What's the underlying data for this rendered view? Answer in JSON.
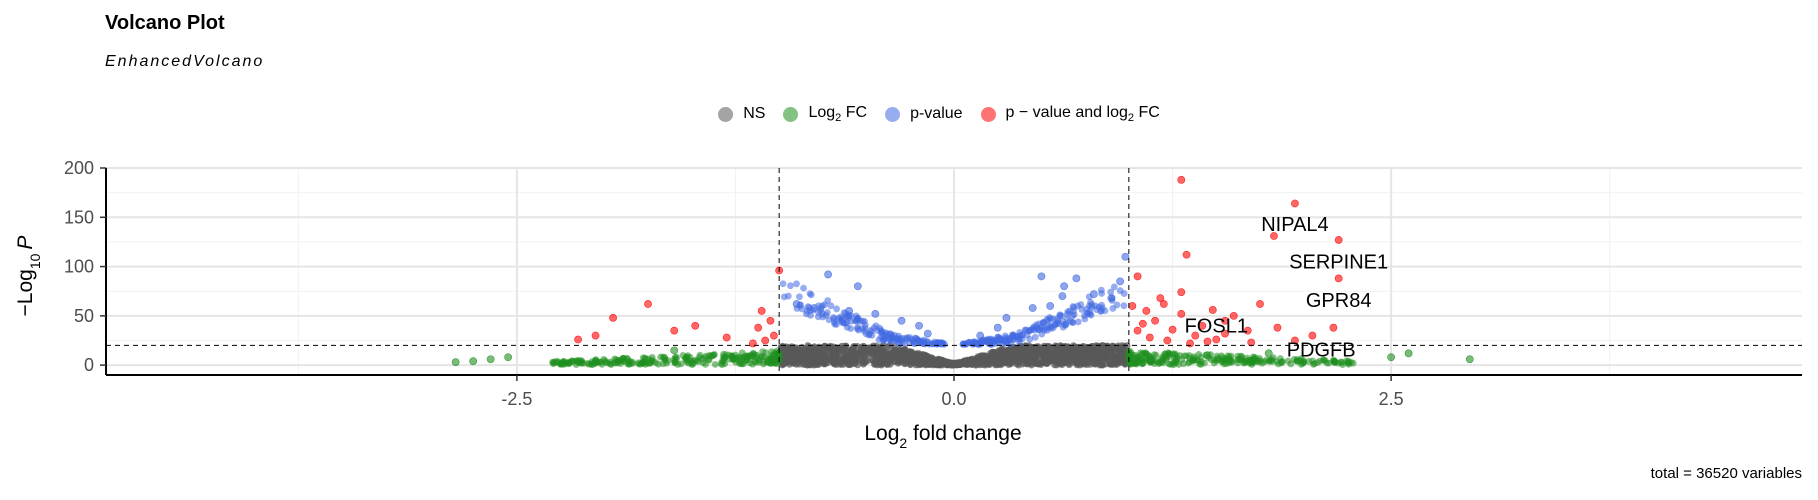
{
  "chart_data": {
    "type": "scatter",
    "title": "Volcano Plot",
    "subtitle": "EnhancedVolcano",
    "xlabel_main": "Log",
    "xlabel_sub": "2",
    "xlabel_rest": " fold change",
    "ylabel_pre": "−Log",
    "ylabel_sub": "10",
    "ylabel_italic": "P",
    "xlim": [
      -4.85,
      4.85
    ],
    "ylim": [
      -10,
      200
    ],
    "x_ticks": [
      -2.5,
      0.0,
      2.5
    ],
    "x_tick_labels": [
      "-2.5",
      "0.0",
      "2.5"
    ],
    "y_ticks": [
      0,
      50,
      100,
      150,
      200
    ],
    "y_tick_labels": [
      "0",
      "50",
      "100",
      "150",
      "200"
    ],
    "grid": true,
    "fc_cutoff": 1.0,
    "p_cutoff_neglog10": 20,
    "legend_position": "top",
    "legend": [
      {
        "key": "ns",
        "label_main": "NS",
        "label_sub": "",
        "label_rest": "",
        "color": "#595959"
      },
      {
        "key": "log2fc",
        "label_main": "Log",
        "label_sub": "2",
        "label_rest": " FC",
        "color": "#1f8f1f"
      },
      {
        "key": "pvalue",
        "label_main": "p-value",
        "label_sub": "",
        "label_rest": "",
        "color": "#4169e1"
      },
      {
        "key": "both",
        "label_main": "p − value and log",
        "label_sub": "2",
        "label_rest": " FC",
        "color": "#ff0000"
      }
    ],
    "series": [
      {
        "key": "both",
        "color": "#ff0000",
        "points": [
          [
            1.3,
            188
          ],
          [
            1.95,
            164
          ],
          [
            2.2,
            127
          ],
          [
            1.83,
            131
          ],
          [
            1.33,
            112
          ],
          [
            2.2,
            88
          ],
          [
            1.05,
            90
          ],
          [
            1.2,
            62
          ],
          [
            1.1,
            55
          ],
          [
            1.3,
            52
          ],
          [
            1.48,
            56
          ],
          [
            1.6,
            50
          ],
          [
            1.75,
            62
          ],
          [
            2.17,
            38
          ],
          [
            1.42,
            40
          ],
          [
            1.15,
            45
          ],
          [
            1.25,
            36
          ],
          [
            1.38,
            30
          ],
          [
            1.55,
            32
          ],
          [
            1.68,
            35
          ],
          [
            1.85,
            38
          ],
          [
            1.5,
            26
          ],
          [
            1.45,
            24
          ],
          [
            1.22,
            25
          ],
          [
            1.12,
            28
          ],
          [
            1.05,
            35
          ],
          [
            1.35,
            22
          ],
          [
            1.7,
            23
          ],
          [
            1.95,
            25
          ],
          [
            2.05,
            30
          ],
          [
            1.08,
            42
          ],
          [
            1.18,
            68
          ],
          [
            1.3,
            74
          ],
          [
            1.02,
            60
          ],
          [
            1.55,
            45
          ],
          [
            -1.0,
            96
          ],
          [
            -1.75,
            62
          ],
          [
            -1.95,
            48
          ],
          [
            -2.15,
            26
          ],
          [
            -1.48,
            40
          ],
          [
            -1.1,
            55
          ],
          [
            -1.05,
            45
          ],
          [
            -1.12,
            38
          ],
          [
            -1.03,
            30
          ],
          [
            -1.08,
            25
          ],
          [
            -1.15,
            22
          ],
          [
            -2.05,
            30
          ],
          [
            -1.6,
            35
          ],
          [
            -1.3,
            28
          ]
        ]
      },
      {
        "key": "pvalue",
        "color": "#4169e1",
        "points": [
          [
            -0.72,
            92
          ],
          [
            0.5,
            90
          ],
          [
            -0.55,
            80
          ],
          [
            0.63,
            80
          ],
          [
            0.7,
            88
          ],
          [
            0.98,
            110
          ],
          [
            -0.9,
            62
          ],
          [
            -0.8,
            58
          ],
          [
            -0.6,
            55
          ],
          [
            -0.45,
            52
          ],
          [
            -0.3,
            45
          ],
          [
            -0.2,
            40
          ],
          [
            0.3,
            48
          ],
          [
            0.45,
            58
          ],
          [
            0.55,
            60
          ],
          [
            0.62,
            70
          ],
          [
            0.8,
            72
          ],
          [
            0.9,
            68
          ],
          [
            0.95,
            85
          ],
          [
            0.25,
            38
          ],
          [
            0.15,
            30
          ],
          [
            -0.15,
            32
          ]
        ]
      },
      {
        "key": "ns",
        "color": "#4d4d4d",
        "points": []
      },
      {
        "key": "log2fc",
        "color": "#1f8f1f",
        "points": [
          [
            -2.85,
            3
          ],
          [
            -2.75,
            4
          ],
          [
            -2.65,
            6
          ],
          [
            -2.55,
            8
          ],
          [
            2.95,
            6
          ],
          [
            2.6,
            12
          ],
          [
            2.5,
            8
          ],
          [
            1.45,
            10
          ],
          [
            1.8,
            12
          ],
          [
            -1.6,
            15
          ]
        ]
      }
    ],
    "labels": [
      {
        "text": "NIPAL4",
        "x": 1.95,
        "y": 143
      },
      {
        "text": "SERPINE1",
        "x": 2.2,
        "y": 105
      },
      {
        "text": "GPR84",
        "x": 2.2,
        "y": 66
      },
      {
        "text": "FOSL1",
        "x": 1.5,
        "y": 40
      },
      {
        "text": "PDGFB",
        "x": 2.1,
        "y": 16
      }
    ],
    "caption": "total = 36520 variables"
  }
}
